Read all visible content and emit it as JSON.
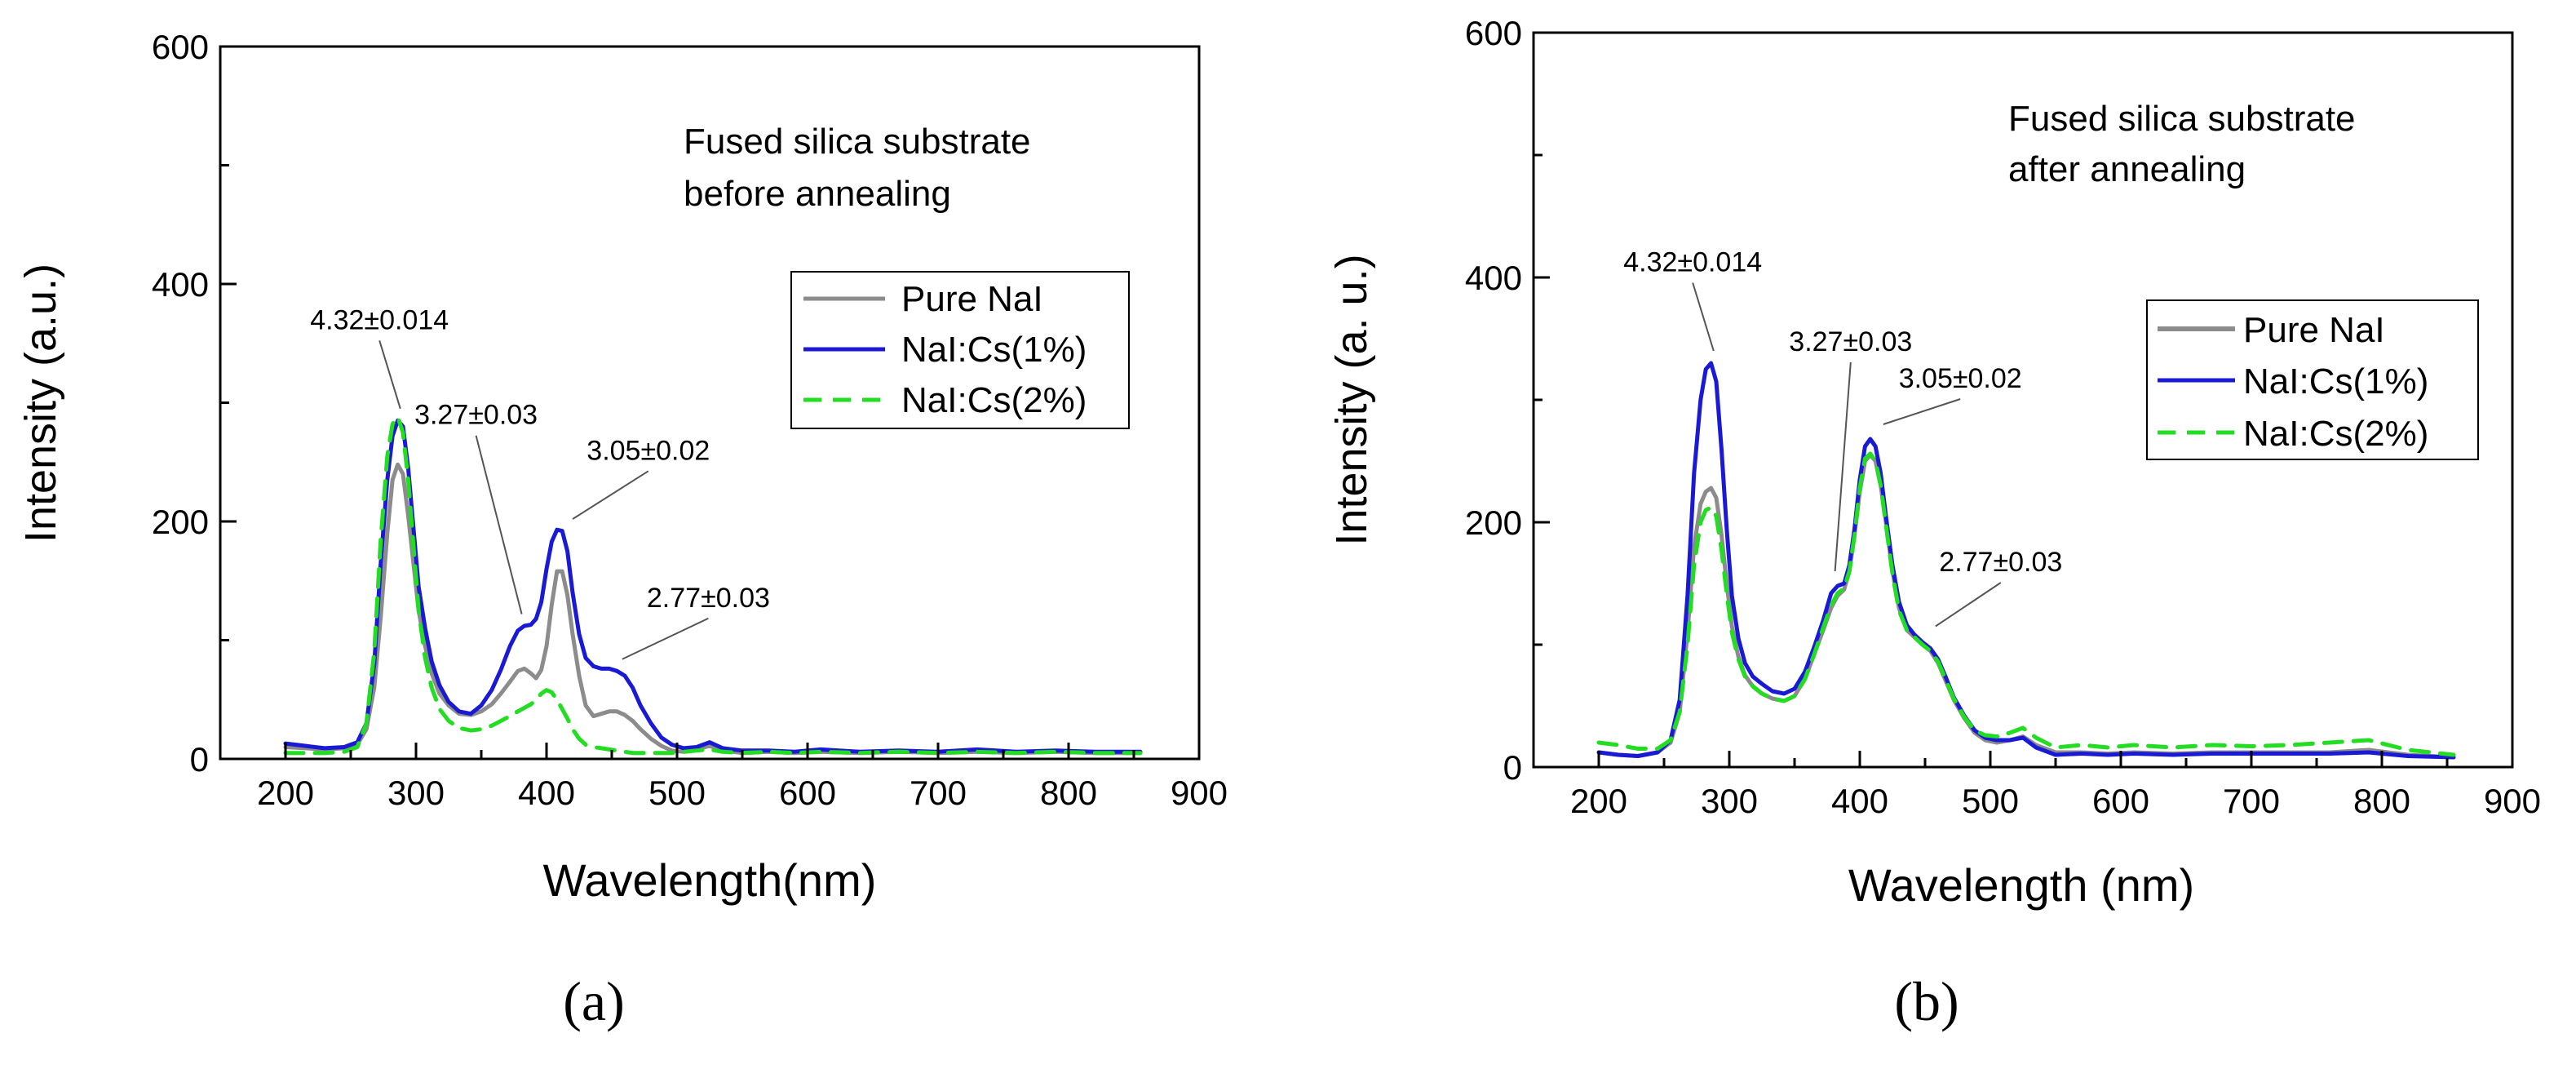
{
  "colors": {
    "pure_nai": "#8c8c8c",
    "nai_cs_1": "#1a1ad6",
    "nai_cs_2": "#22dd22",
    "axis": "#000000",
    "background": "#ffffff"
  },
  "chart_data": [
    {
      "type": "line",
      "panel_label": "(a)",
      "xlabel": "Wavelength(nm)",
      "ylabel": "Intensity (a.u.)",
      "xlim": [
        150,
        900
      ],
      "ylim": [
        0,
        600
      ],
      "xticks": [
        200,
        300,
        400,
        500,
        600,
        700,
        800,
        900
      ],
      "yticks": [
        0,
        200,
        400,
        600
      ],
      "grid": false,
      "annotation_text": [
        "Fused silica substrate",
        "before annealing"
      ],
      "legend_position": "right",
      "series": [
        {
          "name": "Pure NaI",
          "color_key": "pure_nai",
          "dash": "solid",
          "x": [
            200,
            215,
            230,
            245,
            255,
            262,
            268,
            273,
            278,
            282,
            286,
            290,
            294,
            298,
            302,
            307,
            312,
            318,
            325,
            333,
            342,
            350,
            358,
            365,
            372,
            378,
            383,
            388,
            392,
            396,
            400,
            404,
            408,
            412,
            416,
            420,
            425,
            430,
            436,
            442,
            448,
            454,
            460,
            466,
            472,
            480,
            488,
            496,
            505,
            515,
            525,
            535,
            550,
            570,
            590,
            610,
            640,
            670,
            700,
            730,
            760,
            790,
            820,
            855
          ],
          "y": [
            10,
            9,
            8,
            9,
            12,
            25,
            60,
            120,
            190,
            235,
            248,
            240,
            205,
            165,
            125,
            95,
            72,
            55,
            45,
            38,
            37,
            40,
            46,
            55,
            65,
            74,
            76,
            72,
            68,
            75,
            95,
            130,
            158,
            158,
            138,
            105,
            70,
            45,
            36,
            38,
            40,
            40,
            37,
            32,
            25,
            17,
            11,
            7,
            6,
            8,
            11,
            7,
            5,
            6,
            5,
            6,
            5,
            6,
            5,
            6,
            5,
            6,
            5,
            5
          ]
        },
        {
          "name": "NaI:Cs(1%)",
          "color_key": "nai_cs_1",
          "dash": "solid",
          "x": [
            200,
            215,
            230,
            245,
            255,
            262,
            268,
            273,
            278,
            282,
            286,
            290,
            294,
            298,
            302,
            307,
            312,
            318,
            325,
            333,
            342,
            350,
            358,
            365,
            372,
            378,
            383,
            388,
            392,
            396,
            400,
            404,
            408,
            412,
            416,
            420,
            425,
            430,
            436,
            442,
            448,
            454,
            460,
            466,
            472,
            480,
            488,
            496,
            505,
            515,
            525,
            535,
            550,
            570,
            590,
            610,
            640,
            670,
            700,
            730,
            760,
            790,
            820,
            855
          ],
          "y": [
            13,
            11,
            9,
            10,
            14,
            30,
            80,
            165,
            235,
            272,
            285,
            280,
            245,
            195,
            145,
            110,
            82,
            62,
            48,
            40,
            38,
            45,
            58,
            75,
            95,
            108,
            112,
            113,
            118,
            132,
            160,
            183,
            193,
            192,
            175,
            140,
            105,
            85,
            78,
            76,
            76,
            74,
            70,
            60,
            45,
            30,
            18,
            12,
            9,
            10,
            14,
            9,
            7,
            7,
            6,
            8,
            6,
            7,
            6,
            8,
            6,
            7,
            6,
            6
          ]
        },
        {
          "name": "NaI:Cs(2%)",
          "color_key": "nai_cs_2",
          "dash": "dashed",
          "x": [
            200,
            215,
            230,
            245,
            255,
            262,
            268,
            273,
            278,
            282,
            286,
            290,
            294,
            298,
            302,
            307,
            312,
            318,
            325,
            333,
            342,
            350,
            358,
            365,
            372,
            378,
            383,
            388,
            392,
            396,
            400,
            404,
            408,
            412,
            416,
            420,
            425,
            430,
            436,
            442,
            448,
            454,
            460,
            466,
            472,
            480,
            488,
            496,
            505,
            515,
            525,
            535,
            550,
            570,
            590,
            610,
            640,
            670,
            700,
            730,
            760,
            790,
            820,
            855
          ],
          "y": [
            5,
            5,
            5,
            6,
            10,
            30,
            90,
            185,
            255,
            282,
            288,
            275,
            235,
            180,
            125,
            85,
            60,
            42,
            32,
            26,
            24,
            25,
            28,
            32,
            36,
            40,
            43,
            46,
            50,
            55,
            58,
            56,
            50,
            42,
            34,
            25,
            17,
            12,
            10,
            9,
            8,
            7,
            6,
            5,
            5,
            5,
            5,
            5,
            6,
            7,
            8,
            6,
            5,
            6,
            5,
            6,
            5,
            6,
            5,
            6,
            5,
            6,
            5,
            5
          ]
        }
      ],
      "peak_labels": [
        {
          "text": "4.32±0.014",
          "label_x": 272,
          "label_y": 362,
          "tip_x": 288,
          "tip_y": 295
        },
        {
          "text": "3.27±0.03",
          "label_x": 346,
          "label_y": 282,
          "tip_x": 381,
          "tip_y": 122
        },
        {
          "text": "3.05±0.02",
          "label_x": 478,
          "label_y": 252,
          "tip_x": 420,
          "tip_y": 202
        },
        {
          "text": "2.77±0.03",
          "label_x": 524,
          "label_y": 128,
          "tip_x": 458,
          "tip_y": 84
        }
      ]
    },
    {
      "type": "line",
      "panel_label": "(b)",
      "xlabel": "Wavelength (nm)",
      "ylabel": "Intensity (a. u.)",
      "xlim": [
        150,
        900
      ],
      "ylim": [
        0,
        600
      ],
      "xticks": [
        200,
        300,
        400,
        500,
        600,
        700,
        800,
        900
      ],
      "yticks": [
        0,
        200,
        400,
        600
      ],
      "grid": false,
      "annotation_text": [
        "Fused silica substrate",
        "after annealing"
      ],
      "legend_position": "right",
      "series": [
        {
          "name": "Pure NaI",
          "color_key": "pure_nai",
          "dash": "solid",
          "x": [
            200,
            215,
            230,
            245,
            255,
            262,
            268,
            273,
            278,
            282,
            286,
            290,
            294,
            298,
            302,
            307,
            312,
            318,
            325,
            333,
            342,
            350,
            358,
            365,
            372,
            378,
            383,
            388,
            392,
            396,
            400,
            404,
            408,
            412,
            416,
            420,
            425,
            430,
            436,
            442,
            448,
            454,
            460,
            466,
            472,
            480,
            488,
            496,
            505,
            515,
            525,
            535,
            550,
            570,
            590,
            610,
            640,
            670,
            700,
            730,
            760,
            790,
            820,
            855
          ],
          "y": [
            12,
            10,
            9,
            12,
            20,
            45,
            110,
            180,
            215,
            225,
            228,
            220,
            190,
            150,
            115,
            90,
            75,
            66,
            60,
            56,
            54,
            58,
            72,
            92,
            112,
            130,
            140,
            145,
            160,
            190,
            225,
            250,
            255,
            250,
            230,
            200,
            160,
            130,
            112,
            106,
            100,
            95,
            85,
            70,
            55,
            40,
            28,
            22,
            20,
            22,
            25,
            18,
            12,
            12,
            11,
            12,
            11,
            12,
            12,
            12,
            12,
            14,
            10,
            8
          ]
        },
        {
          "name": "NaI:Cs(1%)",
          "color_key": "nai_cs_1",
          "dash": "solid",
          "x": [
            200,
            215,
            230,
            245,
            255,
            262,
            268,
            273,
            278,
            282,
            286,
            290,
            294,
            298,
            302,
            307,
            312,
            318,
            325,
            333,
            342,
            350,
            358,
            365,
            372,
            378,
            383,
            388,
            392,
            396,
            400,
            404,
            408,
            412,
            416,
            420,
            425,
            430,
            436,
            442,
            448,
            454,
            460,
            466,
            472,
            480,
            488,
            496,
            505,
            515,
            525,
            535,
            550,
            570,
            590,
            610,
            640,
            670,
            700,
            730,
            760,
            790,
            820,
            855
          ],
          "y": [
            12,
            10,
            9,
            12,
            22,
            55,
            140,
            240,
            300,
            325,
            330,
            315,
            260,
            195,
            140,
            105,
            85,
            74,
            68,
            62,
            60,
            64,
            78,
            98,
            120,
            142,
            148,
            150,
            165,
            195,
            235,
            262,
            268,
            262,
            240,
            205,
            165,
            135,
            116,
            108,
            102,
            97,
            88,
            73,
            57,
            42,
            30,
            24,
            22,
            22,
            24,
            16,
            10,
            11,
            10,
            11,
            10,
            11,
            11,
            11,
            11,
            12,
            9,
            8
          ]
        },
        {
          "name": "NaI:Cs(2%)",
          "color_key": "nai_cs_2",
          "dash": "dashed",
          "x": [
            200,
            215,
            230,
            245,
            255,
            262,
            268,
            273,
            278,
            282,
            286,
            290,
            294,
            298,
            302,
            307,
            312,
            318,
            325,
            333,
            342,
            350,
            358,
            365,
            372,
            378,
            383,
            388,
            392,
            396,
            400,
            404,
            408,
            412,
            416,
            420,
            425,
            430,
            436,
            442,
            448,
            454,
            460,
            466,
            472,
            480,
            488,
            496,
            505,
            515,
            525,
            535,
            550,
            570,
            590,
            610,
            640,
            670,
            700,
            730,
            760,
            790,
            820,
            855
          ],
          "y": [
            20,
            18,
            15,
            15,
            22,
            45,
            100,
            165,
            200,
            210,
            212,
            205,
            178,
            142,
            110,
            88,
            74,
            66,
            60,
            56,
            54,
            58,
            72,
            92,
            114,
            132,
            142,
            146,
            160,
            190,
            228,
            252,
            256,
            250,
            230,
            198,
            158,
            128,
            112,
            106,
            100,
            95,
            86,
            71,
            56,
            41,
            30,
            26,
            25,
            28,
            32,
            24,
            16,
            18,
            16,
            18,
            16,
            18,
            17,
            18,
            20,
            22,
            14,
            10
          ]
        }
      ],
      "peak_labels": [
        {
          "text": "4.32±0.014",
          "label_x": 272,
          "label_y": 405,
          "tip_x": 288,
          "tip_y": 340
        },
        {
          "text": "3.27±0.03",
          "label_x": 393,
          "label_y": 340,
          "tip_x": 381,
          "tip_y": 160
        },
        {
          "text": "3.05±0.02",
          "label_x": 477,
          "label_y": 310,
          "tip_x": 418,
          "tip_y": 280
        },
        {
          "text": "2.77±0.03",
          "label_x": 508,
          "label_y": 160,
          "tip_x": 458,
          "tip_y": 115
        }
      ]
    }
  ]
}
